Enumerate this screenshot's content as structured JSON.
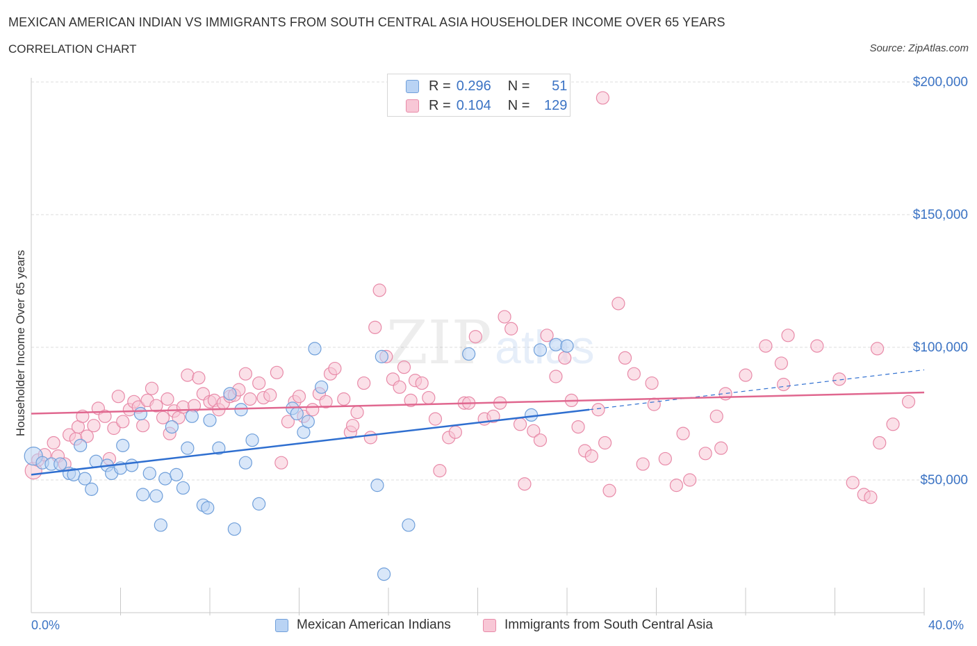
{
  "header": {
    "title": "MEXICAN AMERICAN INDIAN VS IMMIGRANTS FROM SOUTH CENTRAL ASIA HOUSEHOLDER INCOME OVER 65 YEARS",
    "subtitle": "CORRELATION CHART",
    "source": "Source: ZipAtlas.com"
  },
  "legend": {
    "rows": [
      {
        "r_label": "R =",
        "r_value": "0.296",
        "n_label": "N =",
        "n_value": "51"
      },
      {
        "r_label": "R =",
        "r_value": "0.104",
        "n_label": "N =",
        "n_value": "129"
      }
    ]
  },
  "bottom_legend": [
    "Mexican American Indians",
    "Immigrants from South Central Asia"
  ],
  "colors": {
    "blue_fill": "#b9d3f4",
    "blue_stroke": "#6f9fda",
    "blue_line": "#2f6fd0",
    "pink_fill": "#f8c7d6",
    "pink_stroke": "#e88aa8",
    "pink_line": "#e0678f",
    "value_text": "#3b73c4",
    "grid": "#dcdcdc"
  },
  "chart_data": {
    "type": "scatter",
    "title": "MEXICAN AMERICAN INDIAN VS IMMIGRANTS FROM SOUTH CENTRAL ASIA HOUSEHOLDER INCOME OVER 65 YEARS",
    "xlabel": "",
    "ylabel": "Householder Income Over 65 years",
    "xlim": [
      0,
      40
    ],
    "ylim": [
      0,
      200000
    ],
    "x_tick_labels": [
      "0.0%",
      "40.0%"
    ],
    "y_ticks": [
      50000,
      100000,
      150000,
      200000
    ],
    "y_tick_labels": [
      "$50,000",
      "$100,000",
      "$150,000",
      "$200,000"
    ],
    "grid": true,
    "legend_position": "top-center",
    "watermark": "ZIPatlas",
    "series": [
      {
        "name": "Mexican American Indians",
        "R": 0.296,
        "N": 51,
        "trend": {
          "x": [
            0,
            25.0
          ],
          "y": [
            52000,
            76500
          ]
        },
        "trend_extension": {
          "x": [
            25.0,
            40.0
          ],
          "y": [
            76500,
            91500
          ]
        },
        "points": [
          [
            0.1,
            59000
          ],
          [
            0.5,
            56500
          ],
          [
            0.9,
            56000
          ],
          [
            1.3,
            56000
          ],
          [
            1.7,
            52500
          ],
          [
            1.9,
            52000
          ],
          [
            2.2,
            63000
          ],
          [
            2.4,
            50500
          ],
          [
            2.7,
            46500
          ],
          [
            2.9,
            57000
          ],
          [
            3.4,
            55500
          ],
          [
            3.6,
            52500
          ],
          [
            4.0,
            54500
          ],
          [
            4.1,
            63000
          ],
          [
            4.5,
            55500
          ],
          [
            4.9,
            75000
          ],
          [
            5.0,
            44500
          ],
          [
            5.3,
            52500
          ],
          [
            5.6,
            44000
          ],
          [
            5.8,
            33000
          ],
          [
            6.0,
            50500
          ],
          [
            6.3,
            70000
          ],
          [
            6.5,
            52000
          ],
          [
            6.8,
            47000
          ],
          [
            7.0,
            62000
          ],
          [
            7.2,
            74000
          ],
          [
            7.7,
            40500
          ],
          [
            7.9,
            39500
          ],
          [
            8.0,
            72500
          ],
          [
            8.4,
            62000
          ],
          [
            8.9,
            82500
          ],
          [
            9.1,
            31500
          ],
          [
            9.4,
            76500
          ],
          [
            9.6,
            56500
          ],
          [
            9.9,
            65000
          ],
          [
            10.2,
            41000
          ],
          [
            11.7,
            77000
          ],
          [
            11.9,
            75000
          ],
          [
            12.2,
            68000
          ],
          [
            12.4,
            72000
          ],
          [
            12.7,
            99500
          ],
          [
            13.0,
            85000
          ],
          [
            15.5,
            48000
          ],
          [
            15.7,
            96500
          ],
          [
            15.8,
            14500
          ],
          [
            16.9,
            33000
          ],
          [
            19.6,
            97500
          ],
          [
            22.4,
            74500
          ],
          [
            22.8,
            99000
          ],
          [
            23.5,
            101000
          ],
          [
            24.0,
            100500
          ]
        ]
      },
      {
        "name": "Immigrants from South Central Asia",
        "R": 0.104,
        "N": 129,
        "trend": {
          "x": [
            0,
            40.0
          ],
          "y": [
            75000,
            83000
          ]
        },
        "points": [
          [
            0.1,
            53500
          ],
          [
            0.3,
            57500
          ],
          [
            0.6,
            59500
          ],
          [
            1.0,
            64000
          ],
          [
            1.2,
            59000
          ],
          [
            1.5,
            56000
          ],
          [
            1.7,
            67000
          ],
          [
            2.0,
            65500
          ],
          [
            2.1,
            70000
          ],
          [
            2.3,
            74000
          ],
          [
            2.5,
            66500
          ],
          [
            2.8,
            70500
          ],
          [
            3.0,
            77000
          ],
          [
            3.3,
            74000
          ],
          [
            3.5,
            58000
          ],
          [
            3.7,
            69500
          ],
          [
            3.9,
            81500
          ],
          [
            4.1,
            72000
          ],
          [
            4.4,
            76500
          ],
          [
            4.6,
            79500
          ],
          [
            4.8,
            77500
          ],
          [
            5.0,
            70500
          ],
          [
            5.2,
            80000
          ],
          [
            5.4,
            84500
          ],
          [
            5.6,
            78000
          ],
          [
            5.9,
            73500
          ],
          [
            6.1,
            80500
          ],
          [
            6.4,
            76000
          ],
          [
            6.6,
            73500
          ],
          [
            6.8,
            77500
          ],
          [
            7.0,
            89500
          ],
          [
            7.3,
            78000
          ],
          [
            7.5,
            88500
          ],
          [
            7.7,
            82500
          ],
          [
            8.0,
            79500
          ],
          [
            8.2,
            80000
          ],
          [
            8.4,
            76500
          ],
          [
            8.6,
            79000
          ],
          [
            8.9,
            81500
          ],
          [
            9.1,
            82000
          ],
          [
            9.3,
            84000
          ],
          [
            9.6,
            90000
          ],
          [
            9.8,
            80500
          ],
          [
            10.2,
            86500
          ],
          [
            10.4,
            81000
          ],
          [
            10.7,
            82000
          ],
          [
            11.0,
            90500
          ],
          [
            11.2,
            56500
          ],
          [
            11.5,
            72000
          ],
          [
            11.8,
            79500
          ],
          [
            12.0,
            81500
          ],
          [
            12.2,
            74000
          ],
          [
            12.6,
            76500
          ],
          [
            12.9,
            82500
          ],
          [
            13.2,
            79500
          ],
          [
            13.4,
            90000
          ],
          [
            13.6,
            92000
          ],
          [
            14.0,
            80500
          ],
          [
            14.3,
            68000
          ],
          [
            14.6,
            75500
          ],
          [
            14.9,
            86500
          ],
          [
            15.2,
            66000
          ],
          [
            15.4,
            107500
          ],
          [
            15.6,
            121500
          ],
          [
            15.9,
            96500
          ],
          [
            16.2,
            88000
          ],
          [
            16.5,
            85000
          ],
          [
            16.7,
            92500
          ],
          [
            17.0,
            80000
          ],
          [
            17.2,
            87500
          ],
          [
            17.5,
            86500
          ],
          [
            17.8,
            81000
          ],
          [
            18.1,
            73000
          ],
          [
            18.3,
            53500
          ],
          [
            18.7,
            66000
          ],
          [
            19.0,
            68000
          ],
          [
            19.4,
            79000
          ],
          [
            19.6,
            79000
          ],
          [
            19.9,
            104000
          ],
          [
            20.3,
            73000
          ],
          [
            20.7,
            74000
          ],
          [
            21.0,
            79000
          ],
          [
            21.2,
            111500
          ],
          [
            21.5,
            107000
          ],
          [
            21.9,
            71000
          ],
          [
            22.1,
            48500
          ],
          [
            22.5,
            68500
          ],
          [
            22.8,
            65000
          ],
          [
            23.1,
            104500
          ],
          [
            23.5,
            89000
          ],
          [
            23.9,
            96000
          ],
          [
            24.2,
            80000
          ],
          [
            24.5,
            70000
          ],
          [
            24.8,
            61000
          ],
          [
            25.1,
            59000
          ],
          [
            25.4,
            76500
          ],
          [
            25.7,
            64000
          ],
          [
            25.9,
            46000
          ],
          [
            26.3,
            116500
          ],
          [
            26.6,
            96000
          ],
          [
            27.0,
            90000
          ],
          [
            27.4,
            56000
          ],
          [
            27.9,
            78500
          ],
          [
            28.4,
            58000
          ],
          [
            29.2,
            67500
          ],
          [
            29.5,
            50000
          ],
          [
            30.2,
            60000
          ],
          [
            30.7,
            74000
          ],
          [
            32.0,
            89500
          ],
          [
            32.9,
            100500
          ],
          [
            33.6,
            94000
          ],
          [
            33.9,
            104500
          ],
          [
            35.2,
            100500
          ],
          [
            36.2,
            88000
          ],
          [
            36.8,
            49000
          ],
          [
            37.3,
            44500
          ],
          [
            37.9,
            99500
          ],
          [
            38.6,
            71000
          ],
          [
            39.3,
            79500
          ],
          [
            38.0,
            64000
          ],
          [
            37.6,
            43500
          ],
          [
            27.8,
            86500
          ],
          [
            28.9,
            48000
          ],
          [
            25.6,
            194000
          ],
          [
            31.1,
            82500
          ],
          [
            14.4,
            70500
          ],
          [
            6.2,
            67500
          ],
          [
            33.7,
            86000
          ],
          [
            30.9,
            62000
          ]
        ]
      }
    ]
  }
}
